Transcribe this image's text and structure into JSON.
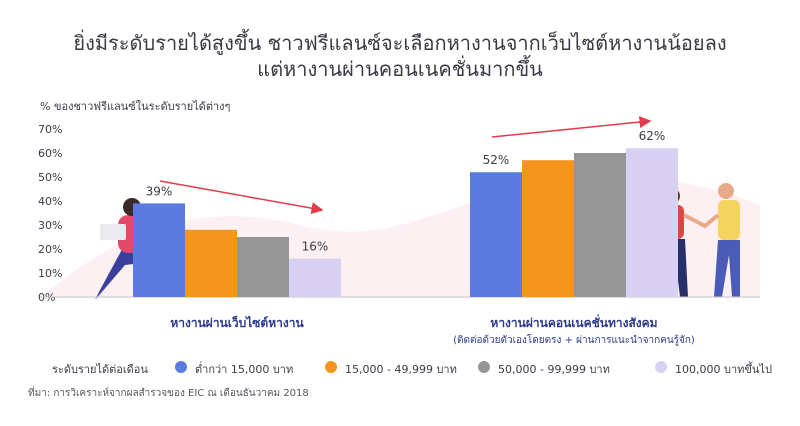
{
  "title_lines": [
    "ยิ่งมีระดับรายได้สูงขึ้น ชาวฟรีแลนซ์จะเลือกหางานจากเว็บไซต์หางานน้อยลง",
    "แต่หางานผ่านคอนเนคชั่นมากขึ้น"
  ],
  "legend_label": "ระดับรายได้ต่อเดือน",
  "source": "ที่มา: การวิเคราะห์จากผลสำรวจของ EIC ณ เดือนธันวาคม 2018",
  "chart_data": {
    "type": "bar",
    "ylabel": "% ของชาวฟรีแลนซ์ในระดับรายได้ต่างๆ",
    "ylim": [
      0,
      70
    ],
    "yticks": [
      "0%",
      "10%",
      "20%",
      "30%",
      "40%",
      "50%",
      "60%",
      "70%"
    ],
    "grid": false,
    "legend_position": "bottom",
    "groups": [
      {
        "label": "หางานผ่านเว็บไซต์หางาน",
        "sublabel": ""
      },
      {
        "label": "หางานผ่านคอนเนคชั่นทางสังคม",
        "sublabel": "(ติดต่อด้วยตัวเองโดยตรง + ผ่านการแนะนำจากคนรู้จัก)"
      }
    ],
    "series": [
      {
        "name": "ต่ำกว่า 15,000 บาท",
        "color": "#5b7be0",
        "values": [
          39,
          52
        ],
        "labels": [
          "39%",
          "52%"
        ]
      },
      {
        "name": "15,000 - 49,999 บาท",
        "color": "#f5941e",
        "values": [
          28,
          57
        ],
        "labels": [
          "",
          ""
        ]
      },
      {
        "name": "50,000 - 99,999 บาท",
        "color": "#969696",
        "values": [
          25,
          60
        ],
        "labels": [
          "",
          ""
        ]
      },
      {
        "name": "100,000 บาทขึ้นไป",
        "color": "#d9d1f2",
        "values": [
          16,
          62
        ],
        "labels": [
          "16%",
          "62%"
        ]
      }
    ],
    "trend_arrow_color": "#e23b4b"
  }
}
